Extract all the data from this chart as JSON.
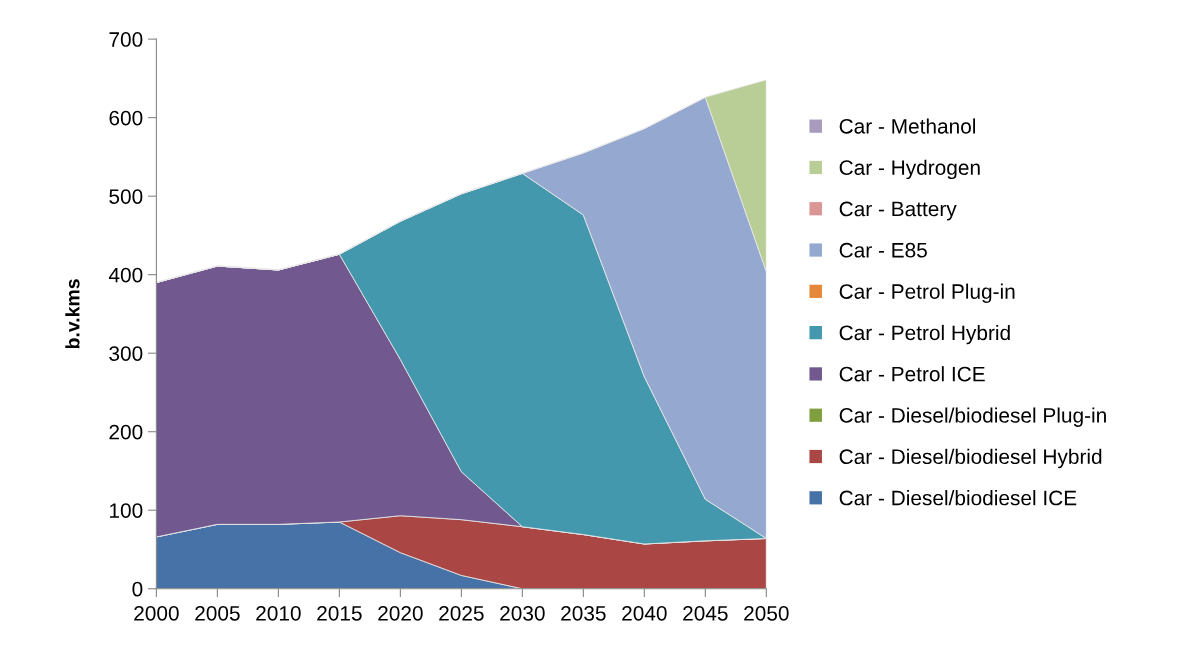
{
  "chart_data": {
    "type": "area",
    "stacked": true,
    "ylabel": "b.v.kms",
    "x": [
      2000,
      2005,
      2010,
      2015,
      2020,
      2025,
      2030,
      2035,
      2040,
      2045,
      2050
    ],
    "xlim": [
      2000,
      2050
    ],
    "xticks": [
      2000,
      2005,
      2010,
      2015,
      2020,
      2025,
      2030,
      2035,
      2040,
      2045,
      2050
    ],
    "ylim": [
      0,
      700
    ],
    "yticks": [
      0,
      100,
      200,
      300,
      400,
      500,
      600,
      700
    ],
    "grid": false,
    "legend": "right",
    "series": [
      {
        "name": "Car - Diesel/biodiesel ICE",
        "color": "#4672a8",
        "values": [
          66,
          82,
          82,
          85,
          46,
          17,
          0,
          0,
          0,
          0,
          0
        ]
      },
      {
        "name": "Car - Diesel/biodiesel Hybrid",
        "color": "#aa4644",
        "values": [
          0,
          0,
          0,
          0,
          47,
          71,
          79,
          69,
          57,
          61,
          64
        ]
      },
      {
        "name": "Car - Diesel/biodiesel Plug-in",
        "color": "#7f9f3f",
        "values": [
          null,
          null,
          null,
          null,
          null,
          null,
          null,
          null,
          null,
          null,
          null
        ]
      },
      {
        "name": "Car - Petrol ICE",
        "color": "#71588f",
        "values": [
          324,
          329,
          324,
          341,
          199,
          61,
          0,
          0,
          0,
          0,
          0
        ]
      },
      {
        "name": "Car - Petrol Hybrid",
        "color": "#4398ae",
        "values": [
          0,
          0,
          0,
          0,
          176,
          354,
          450,
          407,
          213,
          53,
          0
        ]
      },
      {
        "name": "Car - Petrol Plug-in",
        "color": "#e6883a",
        "values": [
          null,
          null,
          null,
          null,
          null,
          null,
          null,
          null,
          null,
          null,
          null
        ]
      },
      {
        "name": "Car - E85",
        "color": "#95a9d0",
        "values": [
          0,
          0,
          0,
          0,
          0,
          0,
          0,
          79,
          316,
          512,
          340
        ]
      },
      {
        "name": "Car - Battery",
        "color": "#d99694",
        "values": [
          null,
          null,
          null,
          null,
          null,
          null,
          null,
          null,
          null,
          null,
          null
        ]
      },
      {
        "name": "Car - Hydrogen",
        "color": "#b9cd96",
        "values": [
          0,
          0,
          0,
          0,
          0,
          0,
          0,
          0,
          0,
          0,
          244
        ]
      },
      {
        "name": "Car - Methanol",
        "color": "#a99bbd",
        "values": [
          null,
          null,
          null,
          null,
          null,
          null,
          null,
          null,
          null,
          null,
          null
        ]
      }
    ]
  }
}
